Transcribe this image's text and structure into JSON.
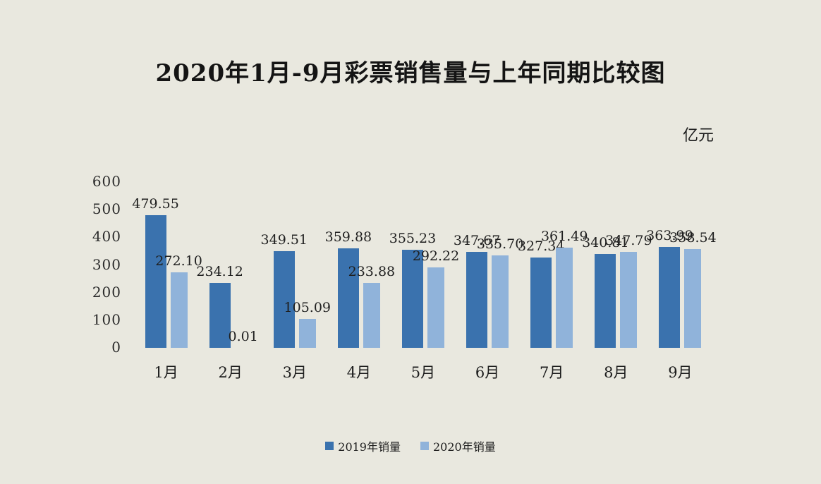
{
  "page": {
    "background_color": "#e9e8df"
  },
  "title": "2020年1月-9月彩票销售量与上年同期比较图",
  "unit_label": "亿元",
  "chart_data": {
    "type": "bar",
    "title": "2020年1月-9月彩票销售量与上年同期比较图",
    "unit": "亿元",
    "categories": [
      "1月",
      "2月",
      "3月",
      "4月",
      "5月",
      "6月",
      "7月",
      "8月",
      "9月"
    ],
    "series": [
      {
        "name": "2019年销量",
        "color": "#3a72ae",
        "values": [
          479.55,
          234.12,
          349.51,
          359.88,
          355.23,
          347.67,
          327.34,
          340.81,
          363.99
        ]
      },
      {
        "name": "2020年销量",
        "color": "#90b3da",
        "values": [
          272.1,
          0.01,
          105.09,
          233.88,
          292.22,
          335.7,
          361.49,
          347.79,
          358.54
        ]
      }
    ],
    "ylim": [
      0,
      600
    ],
    "yticks": [
      0,
      100,
      200,
      300,
      400,
      500,
      600
    ],
    "xlabel": "",
    "ylabel": "",
    "grid": false,
    "data_labels": true,
    "legend_position": "bottom"
  }
}
